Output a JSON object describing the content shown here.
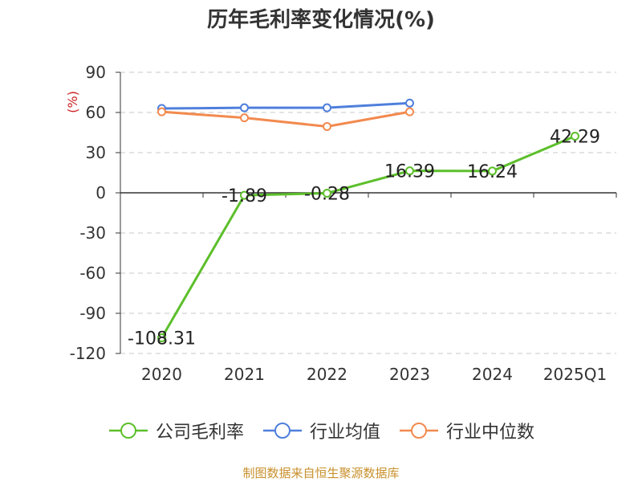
{
  "chart_data": {
    "type": "line",
    "title": "历年毛利率变化情况(%)",
    "ylabel": "(%)",
    "xlabel": "",
    "categories": [
      "2020",
      "2021",
      "2022",
      "2023",
      "2024",
      "2025Q1"
    ],
    "ylim": [
      -120,
      90
    ],
    "yticks": [
      90,
      60,
      30,
      0,
      -30,
      -60,
      -90,
      -120
    ],
    "grid": true,
    "legend_position": "bottom",
    "series": [
      {
        "name": "公司毛利率",
        "color": "#5cbf2a",
        "values": [
          -108.31,
          -1.89,
          -0.28,
          16.39,
          16.24,
          42.29
        ],
        "labels": [
          "-108.31",
          "-1.89",
          "-0.28",
          "16.39",
          "16.24",
          "42.29"
        ]
      },
      {
        "name": "行业均值",
        "color": "#4f7fdc",
        "values": [
          63,
          63.5,
          63.5,
          67,
          null,
          null
        ]
      },
      {
        "name": "行业中位数",
        "color": "#f28a4f",
        "values": [
          60.5,
          56,
          49.5,
          60.5,
          null,
          null
        ]
      }
    ]
  },
  "footer": {
    "source": "制图数据来自恒生聚源数据库"
  }
}
